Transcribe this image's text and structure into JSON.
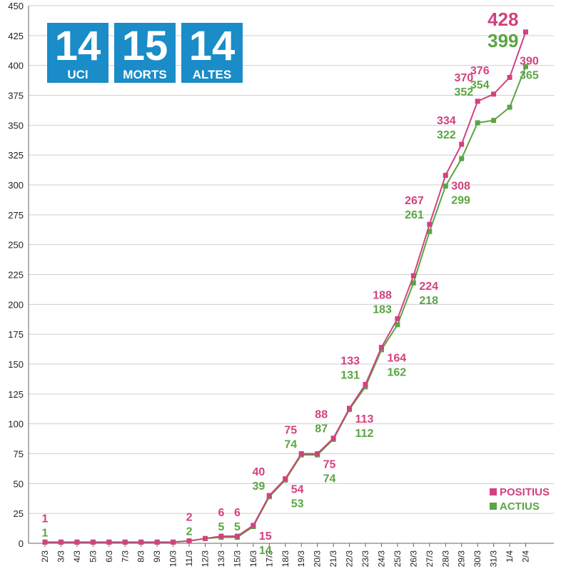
{
  "stats": [
    {
      "value": "14",
      "label": "UCI"
    },
    {
      "value": "15",
      "label": "MORTS"
    },
    {
      "value": "14",
      "label": "ALTES"
    }
  ],
  "colors": {
    "positius": "#d1427f",
    "actius": "#5aa543",
    "grid": "#cfcfcf",
    "stat_box": "#1a8cc8"
  },
  "chart_data": {
    "type": "line",
    "categories": [
      "2/3",
      "3/3",
      "4/3",
      "5/3",
      "6/3",
      "7/3",
      "8/3",
      "9/3",
      "10/3",
      "11/3",
      "12/3",
      "13/3",
      "15/3",
      "16/3",
      "17/3",
      "18/3",
      "19/3",
      "20/3",
      "21/3",
      "22/3",
      "23/3",
      "24/3",
      "25/3",
      "26/3",
      "27/3",
      "28/3",
      "29/3",
      "30/3",
      "31/3",
      "1/4",
      "2/4"
    ],
    "ylim": [
      0,
      450
    ],
    "yticks": [
      0,
      25,
      50,
      75,
      100,
      125,
      150,
      175,
      200,
      225,
      250,
      275,
      300,
      325,
      350,
      375,
      400,
      425,
      450
    ],
    "grid": true,
    "legend_position": "bottom-right",
    "series": [
      {
        "name": "POSITIUS",
        "values": [
          1,
          1,
          1,
          1,
          1,
          1,
          1,
          1,
          1,
          2,
          4,
          6,
          6,
          15,
          40,
          54,
          75,
          75,
          88,
          113,
          133,
          164,
          188,
          224,
          267,
          308,
          334,
          370,
          376,
          390,
          428
        ]
      },
      {
        "name": "ACTIUS",
        "values": [
          1,
          1,
          1,
          1,
          1,
          1,
          1,
          1,
          1,
          2,
          4,
          5,
          5,
          14,
          39,
          53,
          74,
          74,
          87,
          112,
          131,
          162,
          183,
          218,
          261,
          299,
          322,
          352,
          354,
          365,
          399
        ]
      }
    ],
    "data_labels": {
      "positius": [
        {
          "i": 0,
          "text": "1"
        },
        {
          "i": 9,
          "text": "2"
        },
        {
          "i": 11,
          "text": "6"
        },
        {
          "i": 12,
          "text": "6"
        },
        {
          "i": 13,
          "text": "15"
        },
        {
          "i": 14,
          "text": "40"
        },
        {
          "i": 15,
          "text": "54"
        },
        {
          "i": 16,
          "text": "75"
        },
        {
          "i": 17,
          "text": "75"
        },
        {
          "i": 18,
          "text": "88"
        },
        {
          "i": 19,
          "text": "113"
        },
        {
          "i": 20,
          "text": "133"
        },
        {
          "i": 21,
          "text": "164"
        },
        {
          "i": 22,
          "text": "188"
        },
        {
          "i": 23,
          "text": "224"
        },
        {
          "i": 24,
          "text": "267"
        },
        {
          "i": 25,
          "text": "308"
        },
        {
          "i": 26,
          "text": "334"
        },
        {
          "i": 27,
          "text": "370"
        },
        {
          "i": 28,
          "text": "376"
        },
        {
          "i": 29,
          "text": "390"
        },
        {
          "i": 30,
          "text": "428"
        }
      ],
      "actius": [
        {
          "i": 0,
          "text": "1"
        },
        {
          "i": 9,
          "text": "2"
        },
        {
          "i": 11,
          "text": "5"
        },
        {
          "i": 12,
          "text": "5"
        },
        {
          "i": 13,
          "text": "14"
        },
        {
          "i": 14,
          "text": "39"
        },
        {
          "i": 15,
          "text": "53"
        },
        {
          "i": 16,
          "text": "74"
        },
        {
          "i": 17,
          "text": "74"
        },
        {
          "i": 18,
          "text": "87"
        },
        {
          "i": 19,
          "text": "112"
        },
        {
          "i": 20,
          "text": "131"
        },
        {
          "i": 21,
          "text": "162"
        },
        {
          "i": 22,
          "text": "183"
        },
        {
          "i": 23,
          "text": "218"
        },
        {
          "i": 24,
          "text": "261"
        },
        {
          "i": 25,
          "text": "299"
        },
        {
          "i": 26,
          "text": "322"
        },
        {
          "i": 27,
          "text": "352"
        },
        {
          "i": 28,
          "text": "354"
        },
        {
          "i": 29,
          "text": "365"
        },
        {
          "i": 30,
          "text": "399"
        }
      ]
    }
  }
}
